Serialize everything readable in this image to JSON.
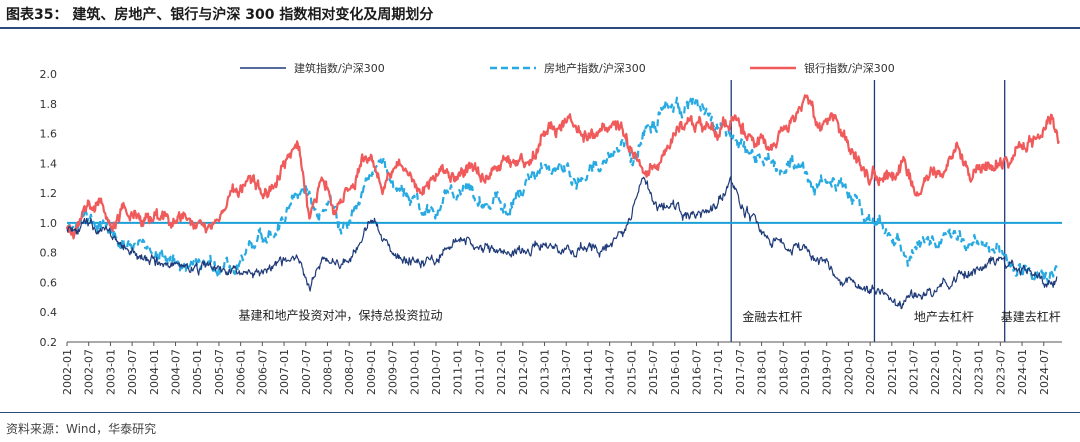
{
  "title": "图表35：  建筑、房地产、银行与沪深 300 指数相对变化及周期划分",
  "source": "资料来源：Wind，华泰研究",
  "chart_data": {
    "type": "line",
    "ylim": [
      0.2,
      2.0
    ],
    "yticks": [
      "0.2",
      "0.4",
      "0.6",
      "0.8",
      "1.0",
      "1.2",
      "1.4",
      "1.6",
      "1.8",
      "2.0"
    ],
    "xticks": [
      "2002-01",
      "2002-07",
      "2003-01",
      "2003-07",
      "2004-01",
      "2004-07",
      "2005-01",
      "2005-07",
      "2006-01",
      "2006-07",
      "2007-01",
      "2007-07",
      "2008-01",
      "2008-07",
      "2009-01",
      "2009-07",
      "2010-01",
      "2010-07",
      "2011-01",
      "2011-07",
      "2012-01",
      "2012-07",
      "2013-01",
      "2013-07",
      "2014-01",
      "2014-07",
      "2015-01",
      "2015-07",
      "2016-01",
      "2016-07",
      "2017-01",
      "2017-07",
      "2018-01",
      "2018-07",
      "2019-01",
      "2019-07",
      "2020-01",
      "2020-07",
      "2021-01",
      "2021-07",
      "2022-01",
      "2022-07",
      "2023-01",
      "2023-07",
      "2024-01",
      "2024-07"
    ],
    "reference_line": 1.0,
    "legend_position": "top",
    "colors": {
      "construction": "#1f3a78",
      "realestate": "#27a9e1",
      "bank": "#f05a5a",
      "refline": "#1ba0d8",
      "vline": "#1f3a78"
    },
    "series": [
      {
        "key": "construction",
        "name": "建筑指数/沪深300",
        "style": "solid",
        "points": [
          [
            2002.0,
            0.98
          ],
          [
            2002.5,
            0.97
          ],
          [
            2003.0,
            0.92
          ],
          [
            2003.3,
            0.84
          ],
          [
            2003.7,
            0.75
          ],
          [
            2004.0,
            0.74
          ],
          [
            2004.5,
            0.72
          ],
          [
            2005.0,
            0.7
          ],
          [
            2005.5,
            0.68
          ],
          [
            2005.9,
            0.65
          ],
          [
            2006.2,
            0.69
          ],
          [
            2006.5,
            0.66
          ],
          [
            2006.8,
            0.7
          ],
          [
            2007.0,
            0.72
          ],
          [
            2007.3,
            0.76
          ],
          [
            2007.6,
            0.58
          ],
          [
            2007.9,
            0.78
          ],
          [
            2008.2,
            0.72
          ],
          [
            2008.5,
            0.75
          ],
          [
            2008.8,
            0.88
          ],
          [
            2009.0,
            1.02
          ],
          [
            2009.3,
            0.88
          ],
          [
            2009.6,
            0.81
          ],
          [
            2010.0,
            0.76
          ],
          [
            2010.5,
            0.75
          ],
          [
            2011.0,
            0.93
          ],
          [
            2011.3,
            0.86
          ],
          [
            2011.7,
            0.82
          ],
          [
            2012.0,
            0.79
          ],
          [
            2012.5,
            0.83
          ],
          [
            2013.0,
            0.85
          ],
          [
            2013.5,
            0.82
          ],
          [
            2014.0,
            0.82
          ],
          [
            2014.4,
            0.84
          ],
          [
            2014.8,
            0.92
          ],
          [
            2015.0,
            1.05
          ],
          [
            2015.3,
            1.28
          ],
          [
            2015.6,
            1.08
          ],
          [
            2015.9,
            1.15
          ],
          [
            2016.2,
            1.05
          ],
          [
            2016.5,
            1.05
          ],
          [
            2016.8,
            1.08
          ],
          [
            2017.0,
            1.15
          ],
          [
            2017.3,
            1.3
          ],
          [
            2017.5,
            1.12
          ],
          [
            2017.8,
            1.02
          ],
          [
            2018.0,
            0.93
          ],
          [
            2018.4,
            0.87
          ],
          [
            2018.8,
            0.84
          ],
          [
            2019.0,
            0.8
          ],
          [
            2019.5,
            0.72
          ],
          [
            2020.0,
            0.62
          ],
          [
            2020.4,
            0.58
          ],
          [
            2020.6,
            0.57
          ],
          [
            2020.9,
            0.5
          ],
          [
            2021.1,
            0.41
          ],
          [
            2021.4,
            0.49
          ],
          [
            2021.8,
            0.52
          ],
          [
            2022.2,
            0.6
          ],
          [
            2022.6,
            0.64
          ],
          [
            2022.9,
            0.68
          ],
          [
            2023.2,
            0.72
          ],
          [
            2023.5,
            0.75
          ],
          [
            2023.8,
            0.7
          ],
          [
            2024.1,
            0.69
          ],
          [
            2024.4,
            0.65
          ],
          [
            2024.6,
            0.6
          ],
          [
            2024.8,
            0.64
          ]
        ]
      },
      {
        "key": "realestate",
        "name": "房地产指数/沪深300",
        "style": "dashed",
        "points": [
          [
            2002.0,
            0.98
          ],
          [
            2002.3,
            1.04
          ],
          [
            2002.7,
            1.02
          ],
          [
            2003.0,
            0.97
          ],
          [
            2003.3,
            0.9
          ],
          [
            2003.7,
            0.82
          ],
          [
            2004.0,
            0.8
          ],
          [
            2004.5,
            0.77
          ],
          [
            2005.0,
            0.71
          ],
          [
            2005.5,
            0.68
          ],
          [
            2005.8,
            0.72
          ],
          [
            2006.2,
            0.82
          ],
          [
            2006.6,
            0.92
          ],
          [
            2006.9,
            0.98
          ],
          [
            2007.2,
            1.1
          ],
          [
            2007.5,
            1.25
          ],
          [
            2007.8,
            1.0
          ],
          [
            2008.0,
            1.2
          ],
          [
            2008.3,
            0.96
          ],
          [
            2008.6,
            1.04
          ],
          [
            2008.9,
            1.28
          ],
          [
            2009.2,
            1.45
          ],
          [
            2009.5,
            1.28
          ],
          [
            2009.8,
            1.2
          ],
          [
            2010.2,
            1.13
          ],
          [
            2010.6,
            1.08
          ],
          [
            2010.9,
            1.2
          ],
          [
            2011.2,
            1.24
          ],
          [
            2011.6,
            1.12
          ],
          [
            2011.9,
            1.16
          ],
          [
            2012.2,
            1.08
          ],
          [
            2012.5,
            1.22
          ],
          [
            2012.8,
            1.32
          ],
          [
            2013.1,
            1.4
          ],
          [
            2013.5,
            1.32
          ],
          [
            2013.8,
            1.28
          ],
          [
            2014.1,
            1.36
          ],
          [
            2014.5,
            1.42
          ],
          [
            2014.8,
            1.55
          ],
          [
            2015.0,
            1.4
          ],
          [
            2015.3,
            1.6
          ],
          [
            2015.6,
            1.7
          ],
          [
            2015.9,
            1.82
          ],
          [
            2016.2,
            1.75
          ],
          [
            2016.5,
            1.78
          ],
          [
            2016.8,
            1.72
          ],
          [
            2017.0,
            1.65
          ],
          [
            2017.3,
            1.6
          ],
          [
            2017.6,
            1.52
          ],
          [
            2017.9,
            1.46
          ],
          [
            2018.2,
            1.42
          ],
          [
            2018.5,
            1.36
          ],
          [
            2018.9,
            1.4
          ],
          [
            2019.2,
            1.28
          ],
          [
            2019.6,
            1.3
          ],
          [
            2020.0,
            1.2
          ],
          [
            2020.3,
            1.1
          ],
          [
            2020.6,
            1.05
          ],
          [
            2020.9,
            0.95
          ],
          [
            2021.1,
            0.9
          ],
          [
            2021.4,
            0.75
          ],
          [
            2021.7,
            0.88
          ],
          [
            2022.0,
            0.82
          ],
          [
            2022.3,
            0.95
          ],
          [
            2022.6,
            0.88
          ],
          [
            2022.9,
            0.92
          ],
          [
            2023.2,
            0.82
          ],
          [
            2023.5,
            0.78
          ],
          [
            2023.8,
            0.72
          ],
          [
            2024.1,
            0.65
          ],
          [
            2024.4,
            0.62
          ],
          [
            2024.6,
            0.6
          ],
          [
            2024.8,
            0.7
          ]
        ]
      },
      {
        "key": "bank",
        "name": "银行指数/沪深300",
        "style": "solid",
        "points": [
          [
            2002.0,
            1.0
          ],
          [
            2002.2,
            0.96
          ],
          [
            2002.5,
            1.1
          ],
          [
            2002.8,
            1.08
          ],
          [
            2003.0,
            1.0
          ],
          [
            2003.3,
            1.1
          ],
          [
            2003.6,
            1.05
          ],
          [
            2003.9,
            1.0
          ],
          [
            2004.2,
            1.08
          ],
          [
            2004.5,
            0.98
          ],
          [
            2004.8,
            1.06
          ],
          [
            2005.0,
            0.97
          ],
          [
            2005.3,
            1.0
          ],
          [
            2005.6,
            1.1
          ],
          [
            2005.9,
            1.2
          ],
          [
            2006.2,
            1.25
          ],
          [
            2006.5,
            1.15
          ],
          [
            2006.8,
            1.22
          ],
          [
            2007.0,
            1.4
          ],
          [
            2007.3,
            1.5
          ],
          [
            2007.6,
            1.05
          ],
          [
            2007.9,
            1.3
          ],
          [
            2008.2,
            1.1
          ],
          [
            2008.5,
            1.2
          ],
          [
            2008.8,
            1.4
          ],
          [
            2009.0,
            1.42
          ],
          [
            2009.3,
            1.25
          ],
          [
            2009.6,
            1.4
          ],
          [
            2009.9,
            1.32
          ],
          [
            2010.2,
            1.25
          ],
          [
            2010.6,
            1.35
          ],
          [
            2010.9,
            1.3
          ],
          [
            2011.2,
            1.38
          ],
          [
            2011.6,
            1.32
          ],
          [
            2011.9,
            1.4
          ],
          [
            2012.2,
            1.45
          ],
          [
            2012.6,
            1.4
          ],
          [
            2012.9,
            1.5
          ],
          [
            2013.1,
            1.68
          ],
          [
            2013.5,
            1.65
          ],
          [
            2013.9,
            1.58
          ],
          [
            2014.2,
            1.62
          ],
          [
            2014.6,
            1.65
          ],
          [
            2014.9,
            1.55
          ],
          [
            2015.1,
            1.42
          ],
          [
            2015.4,
            1.3
          ],
          [
            2015.7,
            1.48
          ],
          [
            2016.0,
            1.62
          ],
          [
            2016.3,
            1.68
          ],
          [
            2016.7,
            1.64
          ],
          [
            2017.0,
            1.62
          ],
          [
            2017.3,
            1.7
          ],
          [
            2017.6,
            1.6
          ],
          [
            2017.9,
            1.58
          ],
          [
            2018.2,
            1.5
          ],
          [
            2018.5,
            1.62
          ],
          [
            2018.8,
            1.7
          ],
          [
            2019.0,
            1.8
          ],
          [
            2019.3,
            1.65
          ],
          [
            2019.6,
            1.68
          ],
          [
            2019.9,
            1.58
          ],
          [
            2020.2,
            1.42
          ],
          [
            2020.5,
            1.3
          ],
          [
            2020.8,
            1.35
          ],
          [
            2021.0,
            1.3
          ],
          [
            2021.3,
            1.4
          ],
          [
            2021.6,
            1.22
          ],
          [
            2021.9,
            1.3
          ],
          [
            2022.2,
            1.38
          ],
          [
            2022.5,
            1.5
          ],
          [
            2022.8,
            1.3
          ],
          [
            2023.0,
            1.42
          ],
          [
            2023.3,
            1.38
          ],
          [
            2023.6,
            1.42
          ],
          [
            2023.9,
            1.48
          ],
          [
            2024.2,
            1.55
          ],
          [
            2024.5,
            1.65
          ],
          [
            2024.7,
            1.75
          ],
          [
            2024.85,
            1.55
          ]
        ]
      }
    ],
    "vertical_lines": [
      2017.3,
      2020.6,
      2023.6
    ],
    "annotations": [
      {
        "text": "基建和地产投资对冲，保持总投资拉动",
        "x": 2008.3,
        "y": 0.35
      },
      {
        "text": "金融去杠杆",
        "x": 2018.25,
        "y": 0.34
      },
      {
        "text": "地产去杠杆",
        "x": 2022.2,
        "y": 0.34
      },
      {
        "text": "基建去杠杆",
        "x": 2024.2,
        "y": 0.34
      }
    ]
  }
}
